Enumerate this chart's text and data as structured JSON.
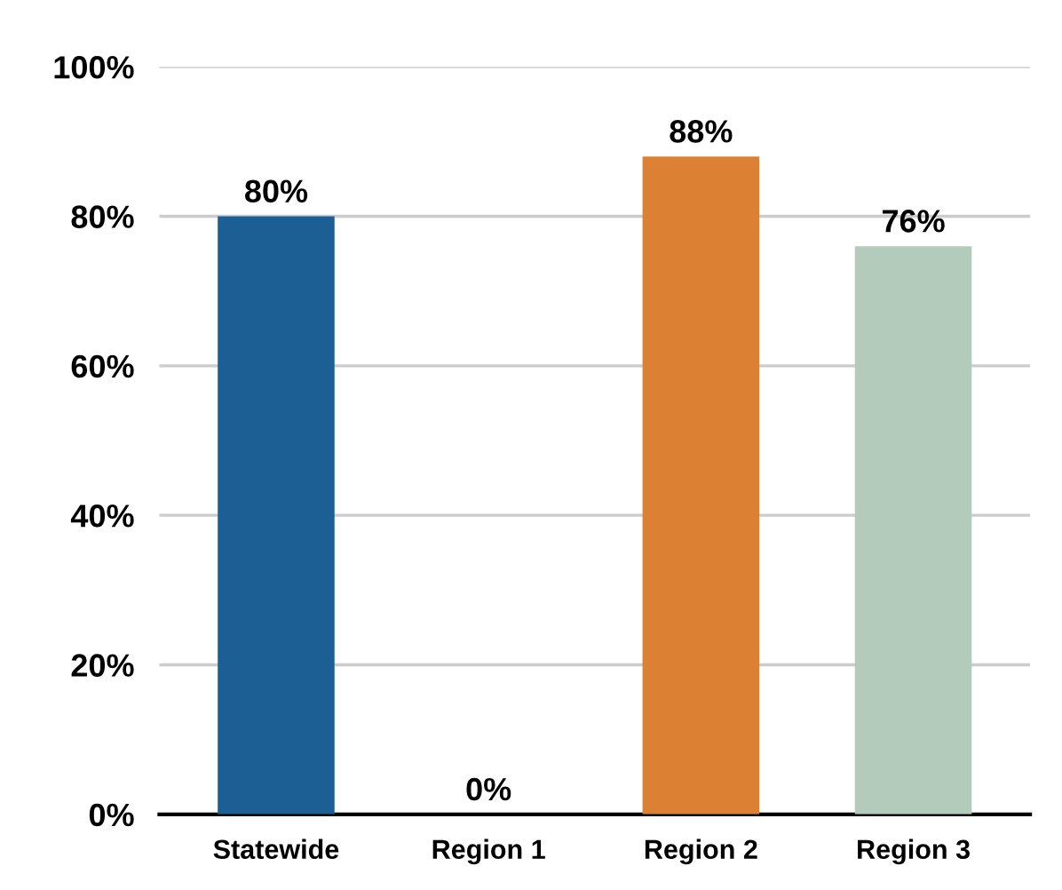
{
  "chart_data": {
    "type": "bar",
    "categories": [
      "Statewide",
      "Region 1",
      "Region 2",
      "Region 3"
    ],
    "values": [
      80,
      0,
      88,
      76
    ],
    "colors": [
      "#1b5f94",
      "#000000",
      "#dc8033",
      "#b2cbbb"
    ],
    "value_labels": [
      "80%",
      "0%",
      "88%",
      "76%"
    ],
    "ylim": [
      0,
      100
    ],
    "yticks": [
      {
        "value": 0,
        "label": "0%"
      },
      {
        "value": 20,
        "label": "20%"
      },
      {
        "value": 40,
        "label": "40%"
      },
      {
        "value": 60,
        "label": "60%"
      },
      {
        "value": 80,
        "label": "80%"
      },
      {
        "value": 100,
        "label": "100%"
      }
    ],
    "grid": "y"
  }
}
